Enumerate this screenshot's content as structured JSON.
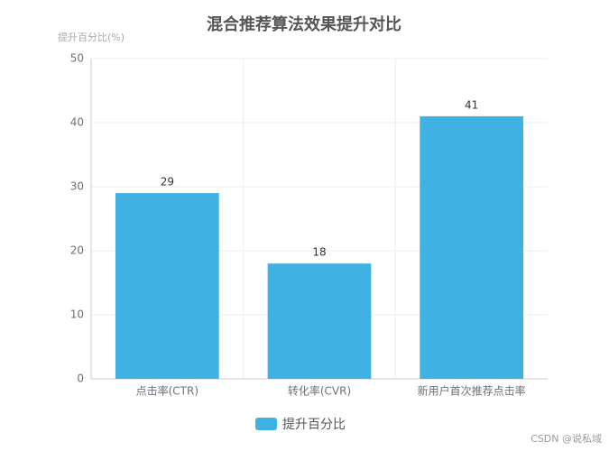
{
  "chart_data": {
    "type": "bar",
    "title": "混合推荐算法效果提升对比",
    "y_label": "提升百分比(%)",
    "categories": [
      "点击率(CTR)",
      "转化率(CVR)",
      "新用户首次推荐点击率"
    ],
    "series": [
      {
        "name": "提升百分比",
        "color": "#3fb1e3",
        "values": [
          29,
          18,
          41
        ]
      }
    ],
    "ylim": [
      0,
      50
    ],
    "yticks": [
      0,
      10,
      20,
      30,
      40,
      50
    ],
    "grid": true,
    "legend": "bottom"
  },
  "watermark": "CSDN @说私域"
}
